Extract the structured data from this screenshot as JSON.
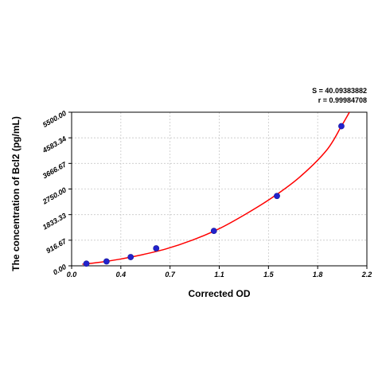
{
  "chart_data": {
    "type": "scatter",
    "title": "",
    "xlabel": "Corrected OD",
    "ylabel": "The concentration of Bcl2 (pg/mL)",
    "xlim": [
      0.0,
      2.2
    ],
    "ylim": [
      0.0,
      5500.0
    ],
    "x_ticks": [
      "0.0",
      "0.4",
      "0.7",
      "1.1",
      "1.5",
      "1.8",
      "2.2"
    ],
    "y_ticks": [
      "0.00",
      "916.67",
      "1833.33",
      "2750.00",
      "3666.67",
      "4583.34",
      "5500.00"
    ],
    "grid": true,
    "annotations": [
      "S = 40.09383882",
      "r = 0.99984708"
    ],
    "series": [
      {
        "type": "scatter",
        "marker_color": "#2222cc",
        "points": [
          {
            "x": 0.11,
            "y": 78
          },
          {
            "x": 0.26,
            "y": 156
          },
          {
            "x": 0.44,
            "y": 312
          },
          {
            "x": 0.63,
            "y": 625
          },
          {
            "x": 1.06,
            "y": 1250
          },
          {
            "x": 1.53,
            "y": 2500
          },
          {
            "x": 2.01,
            "y": 5000
          }
        ]
      },
      {
        "type": "line",
        "line_color": "#ff0000",
        "fit": "curve through standards",
        "points": [
          {
            "x": 0.08,
            "y": 55
          },
          {
            "x": 0.2,
            "y": 120
          },
          {
            "x": 0.35,
            "y": 230
          },
          {
            "x": 0.5,
            "y": 370
          },
          {
            "x": 0.7,
            "y": 600
          },
          {
            "x": 0.9,
            "y": 920
          },
          {
            "x": 1.1,
            "y": 1330
          },
          {
            "x": 1.3,
            "y": 1860
          },
          {
            "x": 1.5,
            "y": 2460
          },
          {
            "x": 1.7,
            "y": 3180
          },
          {
            "x": 1.9,
            "y": 4140
          },
          {
            "x": 2.01,
            "y": 5000
          },
          {
            "x": 2.07,
            "y": 5500
          }
        ]
      }
    ]
  }
}
